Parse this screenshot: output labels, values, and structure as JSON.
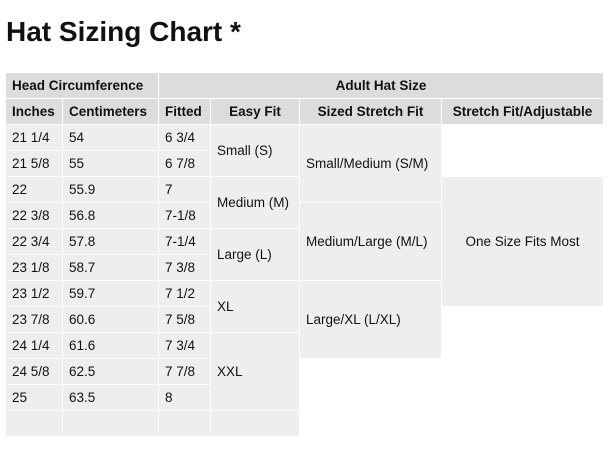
{
  "title": "Hat Sizing Chart *",
  "groups": {
    "head": "Head Circumference",
    "adult": "Adult Hat Size"
  },
  "columns": [
    "Inches",
    "Centimeters",
    "Fitted",
    "Easy Fit",
    "Sized Stretch Fit",
    "Stretch Fit/Adjustable"
  ],
  "rows": [
    [
      "21 1/4",
      "54",
      "6 3/4"
    ],
    [
      "21 5/8",
      "55",
      "6 7/8"
    ],
    [
      "22",
      "55.9",
      "7"
    ],
    [
      "22 3/8",
      "56.8",
      "7-1/8"
    ],
    [
      "22 3/4",
      "57.8",
      "7-1/4"
    ],
    [
      "23 1/8",
      "58.7",
      "7 3/8"
    ],
    [
      "23 1/2",
      "59.7",
      "7 1/2"
    ],
    [
      "23 7/8",
      "60.6",
      "7 5/8"
    ],
    [
      "24 1/4",
      "61.6",
      "7 3/4"
    ],
    [
      "24 5/8",
      "62.5",
      "7 7/8"
    ],
    [
      "25",
      "63.5",
      "8"
    ],
    [
      "",
      "",
      ""
    ]
  ],
  "easy_fit": [
    "Small (S)",
    "Medium (M)",
    "Large (L)",
    "XL",
    "XXL"
  ],
  "sized_stretch": [
    "Small/Medium (S/M)",
    "Medium/Large (M/L)",
    "Large/XL (L/XL)"
  ],
  "stretch_adjustable": "One Size Fits Most"
}
